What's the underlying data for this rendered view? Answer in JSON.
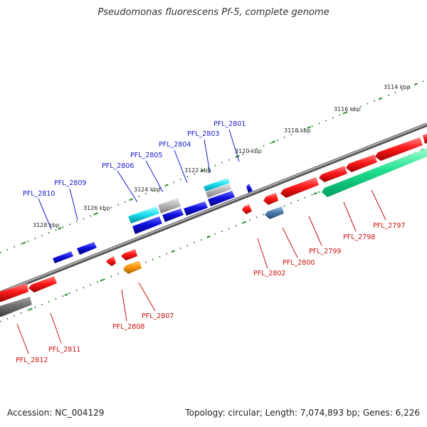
{
  "title": "Pseudomonas fluorescens Pf-5, complete genome",
  "accession": "Accession: NC_004129",
  "topology": "Topology: circular; Length: 7,074,893 bp; Genes: 6,226",
  "colors": {
    "backbone": "#888888",
    "tick": "#2a8a2a",
    "forward_label": "#1a1acc",
    "reverse_label": "#cc1111"
  },
  "scale_labels": [
    "3114 kbp",
    "3116 kbp",
    "3118 kbp",
    "3120 kbp",
    "3122 kbp",
    "3124 kbp",
    "3126 kbp",
    "3128 kbp"
  ],
  "forward_genes": [
    "PFL_2801",
    "PFL_2803",
    "PFL_2804",
    "PFL_2805",
    "PFL_2806",
    "PFL_2809",
    "PFL_2810"
  ],
  "reverse_genes": [
    "PFL_2797",
    "PFL_2798",
    "PFL_2799",
    "PFL_2800",
    "PFL_2802",
    "PFL_2807",
    "PFL_2808",
    "PFL_2811",
    "PFL_2812"
  ]
}
